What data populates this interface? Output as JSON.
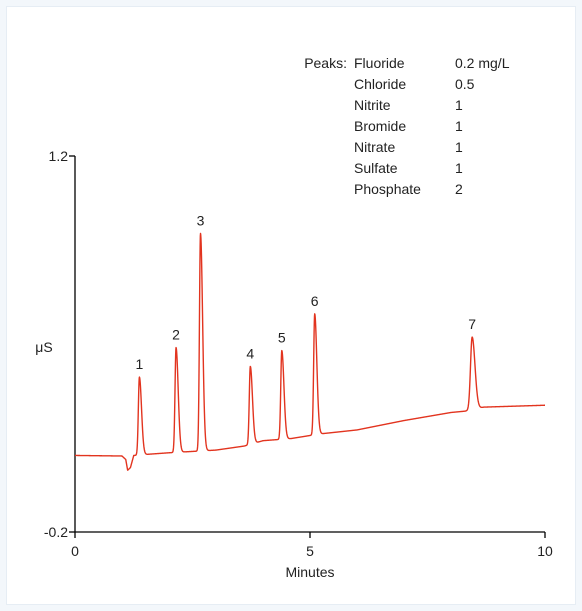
{
  "legend": {
    "title": "Peaks:",
    "rows": [
      {
        "name": "Fluoride",
        "value": "0.2 mg/L"
      },
      {
        "name": "Chloride",
        "value": "0.5"
      },
      {
        "name": "Nitrite",
        "value": "1"
      },
      {
        "name": "Bromide",
        "value": "1"
      },
      {
        "name": "Nitrate",
        "value": "1"
      },
      {
        "name": "Sulfate",
        "value": "1"
      },
      {
        "name": "Phosphate",
        "value": "2"
      }
    ]
  },
  "chart_data": {
    "type": "line",
    "title": "",
    "xlabel": "Minutes",
    "ylabel": "μS",
    "xlim": [
      0,
      10
    ],
    "ylim": [
      -0.2,
      1.2
    ],
    "x_ticks": [
      "0",
      "5",
      "10"
    ],
    "y_ticks": [
      "-0.2",
      "1.2"
    ],
    "grid": false,
    "line_color": "#e2341f",
    "peaks": [
      {
        "label": "1",
        "time": 1.37,
        "height": 0.29
      },
      {
        "label": "2",
        "time": 2.15,
        "height": 0.39
      },
      {
        "label": "3",
        "time": 2.67,
        "height": 0.81
      },
      {
        "label": "4",
        "time": 3.73,
        "height": 0.29
      },
      {
        "label": "5",
        "time": 4.4,
        "height": 0.33
      },
      {
        "label": "6",
        "time": 5.1,
        "height": 0.45
      },
      {
        "label": "7",
        "time": 8.45,
        "height": 0.27
      }
    ],
    "baseline": [
      [
        0,
        0.085
      ],
      [
        1.0,
        0.083
      ],
      [
        1.08,
        0.07
      ],
      [
        1.12,
        0.03
      ],
      [
        1.18,
        0.04
      ],
      [
        1.25,
        0.085
      ],
      [
        1.6,
        0.09
      ],
      [
        2.0,
        0.095
      ],
      [
        3.0,
        0.105
      ],
      [
        3.6,
        0.12
      ],
      [
        4.0,
        0.14
      ],
      [
        4.6,
        0.148
      ],
      [
        5.2,
        0.165
      ],
      [
        6.0,
        0.18
      ],
      [
        7.0,
        0.215
      ],
      [
        8.0,
        0.245
      ],
      [
        8.3,
        0.25
      ],
      [
        8.7,
        0.265
      ],
      [
        10.0,
        0.272
      ]
    ]
  }
}
